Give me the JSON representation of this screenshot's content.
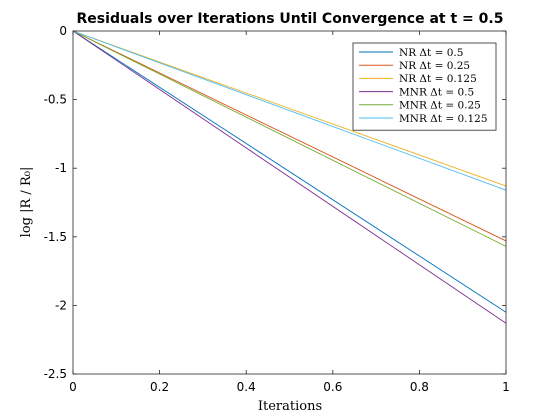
{
  "chart_data": {
    "type": "line",
    "title": "Residuals over Iterations Until Convergence at t = 0.5",
    "xlabel": "Iterations",
    "ylabel": "log |R / R₀|",
    "xlim": [
      0,
      1
    ],
    "ylim": [
      -2.5,
      0
    ],
    "xticks": [
      "0",
      "0.2",
      "0.4",
      "0.6",
      "0.8",
      "1"
    ],
    "yticks": [
      "0",
      "-0.5",
      "-1",
      "-1.5",
      "-2",
      "-2.5"
    ],
    "grid": false,
    "legend_position": "top-right",
    "series": [
      {
        "name": "NR Δt = 0.5",
        "color": "#0072BD",
        "x": [
          0,
          1
        ],
        "y": [
          0,
          -2.05
        ]
      },
      {
        "name": "NR Δt = 0.25",
        "color": "#D95319",
        "x": [
          0,
          1
        ],
        "y": [
          0,
          -1.53
        ]
      },
      {
        "name": "NR Δt = 0.125",
        "color": "#EDB120",
        "x": [
          0,
          1
        ],
        "y": [
          0,
          -1.13
        ]
      },
      {
        "name": "MNR Δt = 0.5",
        "color": "#7E2F8E",
        "x": [
          0,
          1
        ],
        "y": [
          0,
          -2.13
        ]
      },
      {
        "name": "MNR Δt = 0.25",
        "color": "#77AC30",
        "x": [
          0,
          1
        ],
        "y": [
          0,
          -1.57
        ]
      },
      {
        "name": "MNR Δt = 0.125",
        "color": "#4DBEEE",
        "x": [
          0,
          1
        ],
        "y": [
          0,
          -1.16
        ]
      }
    ]
  }
}
